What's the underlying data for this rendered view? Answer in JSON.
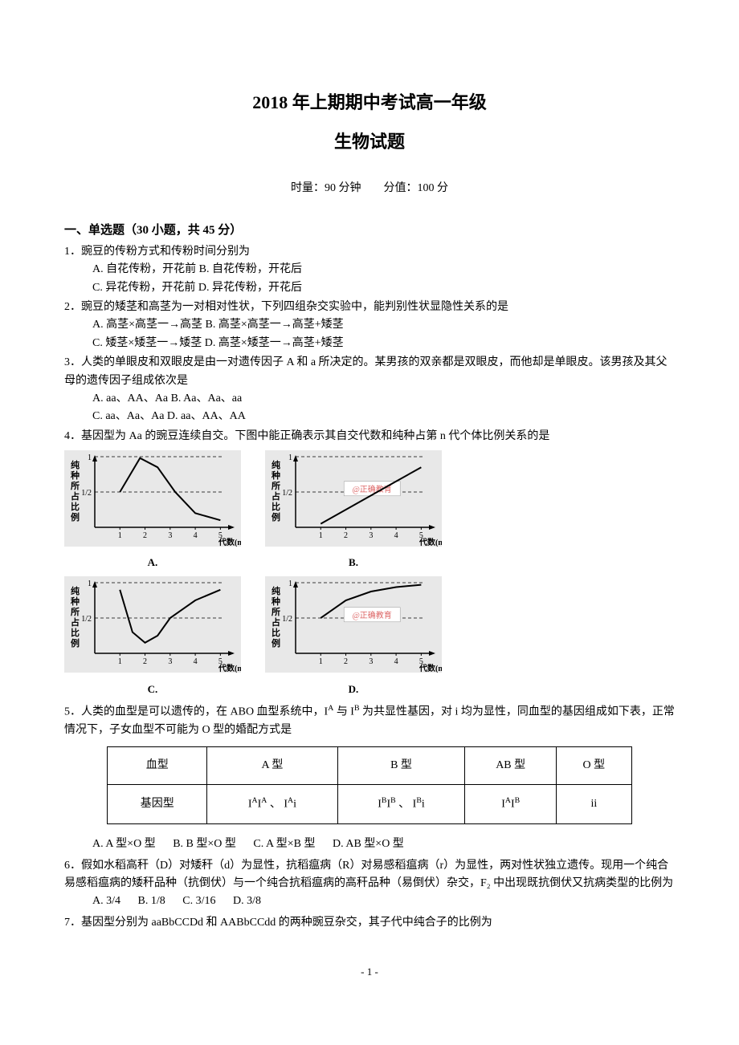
{
  "header": {
    "title_line1": "2018 年上期期中考试高一年级",
    "title_line2": "生物试题",
    "meta": "时量：90 分钟　　分值：100 分"
  },
  "section1": {
    "heading": "一、单选题（30 小题，共 45 分）"
  },
  "q1": {
    "text": "1．豌豆的传粉方式和传粉时间分别为",
    "A": "A. 自花传粉，开花前",
    "B": "B. 自花传粉，开花后",
    "C": "C. 异花传粉，开花前",
    "D": "D. 异花传粉，开花后"
  },
  "q2": {
    "text": "2．豌豆的矮茎和高茎为一对相对性状，下列四组杂交实验中，能判别性状显隐性关系的是",
    "A": "A. 高茎×高茎一→高茎",
    "B": "B. 高茎×高茎一→高茎+矮茎",
    "C": "C. 矮茎×矮茎一→矮茎",
    "D": "D. 高茎×矮茎一→高茎+矮茎"
  },
  "q3": {
    "text": "3．人类的单眼皮和双眼皮是由一对遗传因子 A 和 a 所决定的。某男孩的双亲都是双眼皮，而他却是单眼皮。该男孩及其父母的遗传因子组成依次是",
    "A": "A. aa、AA、Aa",
    "B": "B. Aa、Aa、aa",
    "C": "C. aa、Aa、Aa",
    "D": "D. aa、AA、AA"
  },
  "q4": {
    "text": "4．基因型为 Aa 的豌豆连续自交。下图中能正确表示其自交代数和纯种占第 n 代个体比例关系的是",
    "charts": {
      "ylabel": "纯种所占比例",
      "xlabel": "代数(n)",
      "watermark": "@正确教育",
      "xticks": [
        "1",
        "2",
        "3",
        "4",
        "5"
      ],
      "yticks": [
        "1/2",
        "1"
      ],
      "bg_color": "#e8e8e8",
      "axis_color": "#000000",
      "curve_color": "#000000",
      "label_fontsize": 11,
      "A": {
        "label": "A.",
        "type": "curve",
        "points": [
          [
            1,
            0.5
          ],
          [
            1.8,
            0.98
          ],
          [
            2.5,
            0.85
          ],
          [
            3.2,
            0.5
          ],
          [
            4,
            0.2
          ],
          [
            5,
            0.1
          ]
        ]
      },
      "B": {
        "label": "B.",
        "type": "curve",
        "points": [
          [
            1,
            0.05
          ],
          [
            2,
            0.25
          ],
          [
            3,
            0.45
          ],
          [
            4,
            0.65
          ],
          [
            5,
            0.85
          ]
        ]
      },
      "C": {
        "label": "C.",
        "type": "curve",
        "points": [
          [
            1,
            0.9
          ],
          [
            1.5,
            0.3
          ],
          [
            2,
            0.15
          ],
          [
            2.5,
            0.25
          ],
          [
            3,
            0.5
          ],
          [
            4,
            0.75
          ],
          [
            5,
            0.9
          ]
        ]
      },
      "D": {
        "label": "D.",
        "type": "curve",
        "points": [
          [
            1,
            0.5
          ],
          [
            2,
            0.75
          ],
          [
            3,
            0.875
          ],
          [
            4,
            0.9375
          ],
          [
            5,
            0.97
          ]
        ]
      }
    }
  },
  "q5": {
    "text_a": "5．人类的血型是可以遗传的，在 ABO 血型系统中，I",
    "text_b": " 与 I",
    "text_c": " 为共显性基因，对 i 均为显性，同血型的基因组成如下表，正常情况下，子女血型不可能为 O 型的婚配方式是",
    "table": {
      "cols": [
        "血型",
        "A 型",
        "B 型",
        "AB 型",
        "O 型"
      ],
      "row_label": "基因型",
      "cells": {
        "A": "IAIA 、 IAi",
        "B": "IBIB 、 IBi",
        "AB": "IAIB",
        "O": "ii"
      }
    },
    "A": "A. A 型×O 型",
    "B": "B. B 型×O 型",
    "C": "C. A 型×B 型",
    "D": "D.  AB 型×O 型"
  },
  "q6": {
    "text": "6．假如水稻高秆（D）对矮秆（d）为显性，抗稻瘟病（R）对易感稻瘟病（r）为显性，两对性状独立遗传。现用一个纯合易感稻瘟病的矮秆品种（抗倒伏）与一个纯合抗稻瘟病的高秆品种（易倒伏）杂交，F₂ 中出现既抗倒伏又抗病类型的比例为",
    "A": "A. 3/4",
    "B": "B. 1/8",
    "C": "C. 3/16",
    "D": "D. 3/8"
  },
  "q7": {
    "text": "7．基因型分别为 aaBbCCDd 和 AABbCCdd 的两种豌豆杂交，其子代中纯合子的比例为"
  },
  "footer": {
    "page": "- 1 -"
  }
}
